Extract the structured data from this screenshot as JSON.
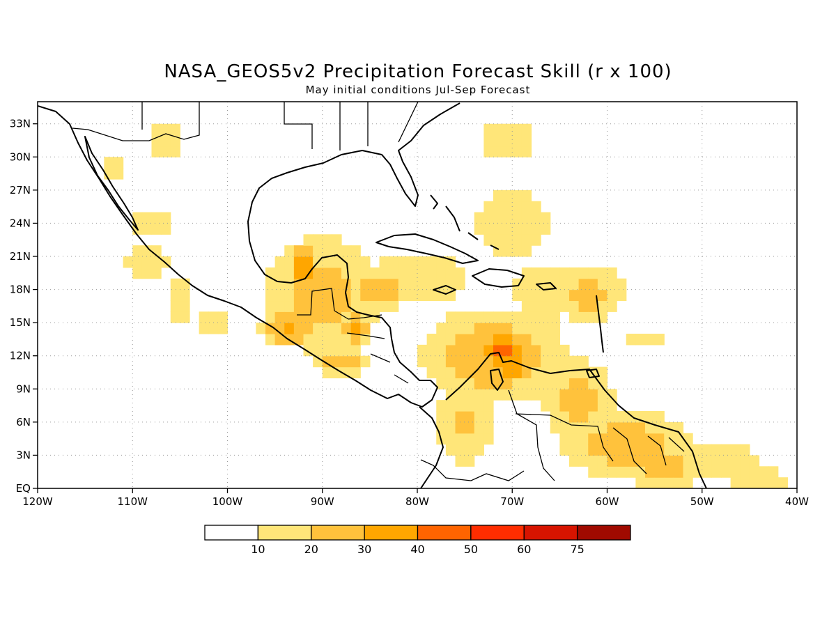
{
  "title": "NASA_GEOS5v2 Precipitation Forecast Skill (r x 100)",
  "subtitle": "May initial conditions  Jul-Sep Forecast",
  "map": {
    "lon_range": [
      -120,
      -40
    ],
    "lat_range": [
      0,
      35
    ],
    "x_ticks": [
      {
        "value": -120,
        "label": "120W"
      },
      {
        "value": -110,
        "label": "110W"
      },
      {
        "value": -100,
        "label": "100W"
      },
      {
        "value": -90,
        "label": "90W"
      },
      {
        "value": -80,
        "label": "80W"
      },
      {
        "value": -70,
        "label": "70W"
      },
      {
        "value": -60,
        "label": "60W"
      },
      {
        "value": -50,
        "label": "50W"
      },
      {
        "value": -40,
        "label": "40W"
      }
    ],
    "y_ticks": [
      {
        "value": 0,
        "label": "EQ"
      },
      {
        "value": 3,
        "label": "3N"
      },
      {
        "value": 6,
        "label": "6N"
      },
      {
        "value": 9,
        "label": "9N"
      },
      {
        "value": 12,
        "label": "12N"
      },
      {
        "value": 15,
        "label": "15N"
      },
      {
        "value": 18,
        "label": "18N"
      },
      {
        "value": 21,
        "label": "21N"
      },
      {
        "value": 24,
        "label": "24N"
      },
      {
        "value": 27,
        "label": "27N"
      },
      {
        "value": 30,
        "label": "30N"
      },
      {
        "value": 33,
        "label": "33N"
      }
    ],
    "grid": true,
    "coastlines": true,
    "country_borders": true
  },
  "colorbar": {
    "colors": [
      "#ffffff",
      "#ffe679",
      "#ffc23c",
      "#ffa600",
      "#ff6400",
      "#ff2d00",
      "#d71400",
      "#a00a00"
    ],
    "labels": [
      "10",
      "20",
      "30",
      "40",
      "50",
      "60",
      "75"
    ]
  },
  "field": {
    "levels": [
      10,
      20,
      30,
      40,
      50,
      60,
      75
    ],
    "blobs": [
      {
        "lon": -106.5,
        "lat": 31.5,
        "rlon": 2.0,
        "rlat": 1.8,
        "v": 18
      },
      {
        "lon": -112.0,
        "lat": 29.0,
        "rlon": 1.0,
        "rlat": 1.5,
        "v": 14
      },
      {
        "lon": -108.0,
        "lat": 24.0,
        "rlon": 2.0,
        "rlat": 1.5,
        "v": 15
      },
      {
        "lon": -108.5,
        "lat": 20.5,
        "rlon": 2.5,
        "rlat": 1.5,
        "v": 15
      },
      {
        "lon": -105.0,
        "lat": 17.0,
        "rlon": 1.5,
        "rlat": 2.0,
        "v": 15
      },
      {
        "lon": -101.5,
        "lat": 15.0,
        "rlon": 1.5,
        "rlat": 1.5,
        "v": 14
      },
      {
        "lon": -90.0,
        "lat": 17.5,
        "rlon": 5.5,
        "rlat": 4.5,
        "v": 24
      },
      {
        "lon": -92.0,
        "lat": 20.0,
        "rlon": 1.5,
        "rlat": 1.8,
        "v": 35
      },
      {
        "lon": -93.5,
        "lat": 14.5,
        "rlon": 2.5,
        "rlat": 1.5,
        "v": 32
      },
      {
        "lon": -88.0,
        "lat": 11.5,
        "rlon": 2.5,
        "rlat": 1.2,
        "v": 30
      },
      {
        "lon": -86.5,
        "lat": 14.5,
        "rlon": 1.5,
        "rlat": 1.5,
        "v": 32
      },
      {
        "lon": -84.0,
        "lat": 18.0,
        "rlon": 2.5,
        "rlat": 1.5,
        "v": 32
      },
      {
        "lon": -80.0,
        "lat": 19.0,
        "rlon": 5.0,
        "rlat": 2.0,
        "v": 20
      },
      {
        "lon": -72.0,
        "lat": 12.0,
        "rlon": 6.0,
        "rlat": 3.5,
        "v": 30
      },
      {
        "lon": -71.0,
        "lat": 12.5,
        "rlon": 2.5,
        "rlat": 1.4,
        "v": 45
      },
      {
        "lon": -70.0,
        "lat": 11.0,
        "rlon": 1.2,
        "rlat": 1.0,
        "v": 40
      },
      {
        "lon": -75.0,
        "lat": 6.0,
        "rlon": 2.5,
        "rlat": 3.5,
        "v": 22
      },
      {
        "lon": -64.0,
        "lat": 18.0,
        "rlon": 6.0,
        "rlat": 2.0,
        "v": 20
      },
      {
        "lon": -62.0,
        "lat": 17.5,
        "rlon": 3.0,
        "rlat": 2.0,
        "v": 26
      },
      {
        "lon": -68.0,
        "lat": 15.0,
        "rlon": 3.0,
        "rlat": 1.5,
        "v": 20
      },
      {
        "lon": -70.0,
        "lat": 24.0,
        "rlon": 4.0,
        "rlat": 3.0,
        "v": 17
      },
      {
        "lon": -70.5,
        "lat": 31.5,
        "rlon": 3.0,
        "rlat": 2.0,
        "v": 17
      },
      {
        "lon": -63.0,
        "lat": 8.0,
        "rlon": 3.0,
        "rlat": 3.0,
        "v": 26
      },
      {
        "lon": -58.0,
        "lat": 4.0,
        "rlon": 6.0,
        "rlat": 2.5,
        "v": 26
      },
      {
        "lon": -54.0,
        "lat": 2.0,
        "rlon": 3.5,
        "rlat": 1.5,
        "v": 28
      },
      {
        "lon": -48.0,
        "lat": 2.5,
        "rlon": 4.0,
        "rlat": 2.0,
        "v": 16
      },
      {
        "lon": -44.0,
        "lat": 0.8,
        "rlon": 3.0,
        "rlat": 0.8,
        "v": 22
      },
      {
        "lon": -56.0,
        "lat": 13.5,
        "rlon": 2.0,
        "rlat": 1.0,
        "v": 15
      }
    ]
  }
}
